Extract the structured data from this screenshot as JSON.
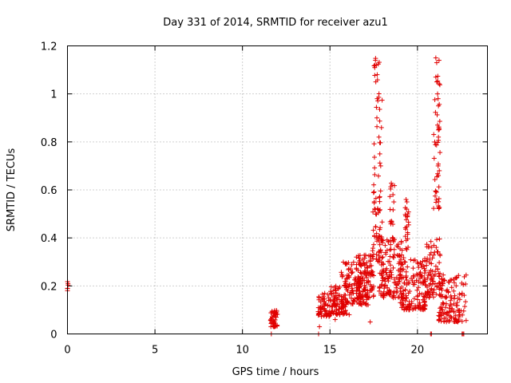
{
  "chart_data": {
    "type": "scatter",
    "title": "Day 331 of 2014, SRMTID for receiver azu1",
    "xlabel": "GPS time / hours",
    "ylabel": "SRMTID / TECUs",
    "xlim": [
      0,
      24
    ],
    "ylim": [
      0,
      1.2
    ],
    "xticks": [
      0,
      5,
      10,
      15,
      20
    ],
    "yticks": [
      0,
      0.2,
      0.4,
      0.6,
      0.8,
      1,
      1.2
    ],
    "xtick_labels": [
      "0",
      "5",
      "10",
      "15",
      "20"
    ],
    "ytick_labels": [
      "0",
      "0.2",
      "0.4",
      "0.6",
      "0.8",
      "1",
      "1.2"
    ],
    "grid": true,
    "marker": "+",
    "color": "#e00000",
    "series": [
      {
        "name": "SRMTID",
        "clusters": [
          {
            "x": [
              0.0,
              0.05
            ],
            "y": [
              0.17,
              0.22
            ],
            "n": 4
          },
          {
            "x": [
              11.6,
              12.0
            ],
            "y": [
              0.03,
              0.1
            ],
            "n": 45
          },
          {
            "x": [
              14.3,
              15.0
            ],
            "y": [
              0.07,
              0.17
            ],
            "n": 60
          },
          {
            "x": [
              15.0,
              16.0
            ],
            "y": [
              0.08,
              0.2
            ],
            "n": 90
          },
          {
            "x": [
              15.6,
              17.2
            ],
            "y": [
              0.12,
              0.3
            ],
            "n": 130
          },
          {
            "x": [
              16.5,
              17.5
            ],
            "y": [
              0.15,
              0.33
            ],
            "n": 100
          },
          {
            "x": [
              17.4,
              17.9
            ],
            "y": [
              0.3,
              0.6
            ],
            "n": 40
          },
          {
            "x": [
              17.5,
              18.0
            ],
            "y": [
              0.4,
              1.15
            ],
            "n": 40
          },
          {
            "x": [
              17.8,
              19.2
            ],
            "y": [
              0.15,
              0.4
            ],
            "n": 140
          },
          {
            "x": [
              18.4,
              18.7
            ],
            "y": [
              0.35,
              0.65
            ],
            "n": 20
          },
          {
            "x": [
              19.0,
              20.5
            ],
            "y": [
              0.1,
              0.32
            ],
            "n": 150
          },
          {
            "x": [
              19.3,
              19.5
            ],
            "y": [
              0.35,
              0.55
            ],
            "n": 20
          },
          {
            "x": [
              20.5,
              21.3
            ],
            "y": [
              0.15,
              0.4
            ],
            "n": 80
          },
          {
            "x": [
              20.9,
              21.3
            ],
            "y": [
              0.5,
              1.15
            ],
            "n": 40
          },
          {
            "x": [
              21.2,
              22.8
            ],
            "y": [
              0.05,
              0.25
            ],
            "n": 130
          }
        ],
        "points": [
          [
            0.0,
            0.18
          ],
          [
            0.03,
            0.21
          ],
          [
            17.6,
            1.14
          ],
          [
            17.65,
            1.12
          ],
          [
            17.7,
            1.08
          ],
          [
            17.62,
            1.05
          ],
          [
            17.7,
            0.98
          ],
          [
            17.68,
            0.9
          ],
          [
            17.8,
            0.82
          ],
          [
            17.85,
            0.75
          ],
          [
            17.9,
            0.7
          ],
          [
            21.05,
            1.15
          ],
          [
            21.1,
            1.13
          ],
          [
            21.05,
            1.07
          ],
          [
            21.1,
            1.05
          ],
          [
            21.15,
            1.0
          ],
          [
            21.18,
            0.98
          ],
          [
            21.2,
            0.95
          ],
          [
            21.15,
            0.87
          ],
          [
            21.2,
            0.85
          ],
          [
            21.2,
            0.82
          ],
          [
            21.18,
            0.7
          ],
          [
            21.25,
            0.68
          ],
          [
            19.35,
            0.56
          ],
          [
            19.4,
            0.55
          ],
          [
            19.38,
            0.52
          ],
          [
            19.45,
            0.5
          ],
          [
            18.55,
            0.62
          ],
          [
            18.6,
            0.58
          ],
          [
            18.65,
            0.55
          ],
          [
            11.65,
            0.0
          ],
          [
            14.35,
            0.0
          ],
          [
            20.75,
            0.0
          ],
          [
            20.8,
            0.0
          ],
          [
            22.55,
            0.0
          ],
          [
            22.6,
            0.0
          ],
          [
            22.65,
            0.0
          ],
          [
            14.4,
            0.03
          ],
          [
            17.3,
            0.05
          ],
          [
            15.3,
            0.06
          ],
          [
            16.1,
            0.08
          ]
        ]
      }
    ]
  }
}
